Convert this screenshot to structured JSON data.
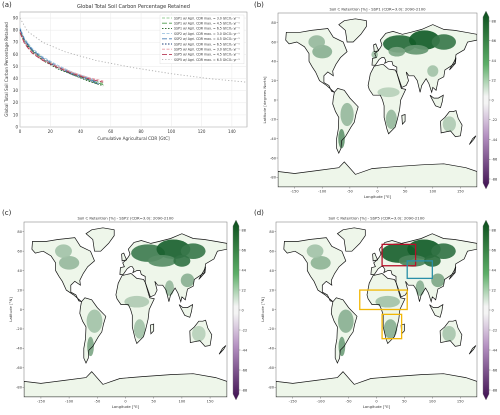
{
  "panels": {
    "a": {
      "letter": "(a)"
    },
    "b": {
      "letter": "(b)"
    },
    "c": {
      "letter": "(c)"
    },
    "d": {
      "letter": "(d)"
    }
  },
  "chart_data": [
    {
      "type": "line",
      "panel": "a",
      "title": "Global Total Soil Carbon Percentage Retained",
      "xlabel": "Cumulative Agricultural CDR [GtC]",
      "ylabel": "Global Total Soil Carbon Percentage Retained",
      "xlim": [
        0,
        150
      ],
      "ylim": [
        0,
        95
      ],
      "x_ticks": [
        "0",
        "20",
        "40",
        "60",
        "80",
        "100",
        "120",
        "140"
      ],
      "y_ticks": [
        "0",
        "10",
        "20",
        "30",
        "40",
        "50",
        "60",
        "70",
        "80",
        "90"
      ],
      "legend_position": "top-right",
      "grid": true,
      "series": [
        {
          "name": "SSP1 w/ Agri. CDR max. = 3.0 GtCO₂ yr⁻¹",
          "color": "#9acd9a",
          "dash": "3,1.5",
          "x": [
            0,
            3,
            8,
            15,
            25,
            35,
            45,
            55
          ],
          "y": [
            80,
            72,
            64,
            57,
            50,
            45,
            40,
            36
          ]
        },
        {
          "name": "SSP1 w/ Agri. CDR max. = 4.5 GtCO₂ yr⁻¹",
          "color": "#4c9a4c",
          "dash": "5,2",
          "x": [
            0,
            3,
            8,
            15,
            25,
            35,
            45,
            55
          ],
          "y": [
            79,
            71,
            63,
            56,
            49,
            44,
            39,
            35
          ]
        },
        {
          "name": "SSP1 w/ Agri. CDR max. = 6.5 GtCO₂ yr⁻¹",
          "color": "#1f5f1f",
          "dash": "1.5,1.5",
          "x": [
            0,
            3,
            8,
            15,
            25,
            35,
            45,
            55
          ],
          "y": [
            78,
            70,
            62,
            55,
            48,
            43,
            38,
            34
          ]
        },
        {
          "name": "SSP2 w/ Agri. CDR max. = 3.0 GtCO₂ yr⁻¹",
          "color": "#9ec3e0",
          "dash": "3,1.5",
          "x": [
            0,
            3,
            8,
            15,
            25,
            35,
            45,
            52
          ],
          "y": [
            82,
            73,
            65,
            58,
            51,
            45,
            41,
            37
          ]
        },
        {
          "name": "SSP2 w/ Agri. CDR max. = 4.5 GtCO₂ yr⁻¹",
          "color": "#4a7fb5",
          "dash": "5,2",
          "x": [
            0,
            3,
            8,
            15,
            25,
            35,
            45,
            52
          ],
          "y": [
            81,
            72,
            64,
            57,
            50,
            44,
            40,
            36
          ]
        },
        {
          "name": "SSP2 w/ Agri. CDR max. = 6.5 GtCO₂ yr⁻¹",
          "color": "#1b3f78",
          "dash": "1.5,1.5",
          "x": [
            0,
            3,
            8,
            15,
            25,
            35,
            45,
            52
          ],
          "y": [
            80,
            71,
            63,
            56,
            49,
            43,
            39,
            35
          ]
        },
        {
          "name": "SSP5 w/ Agri. CDR max. = 3.0 GtCO₂ yr⁻¹",
          "color": "#e39aa5",
          "dash": "3,1.5",
          "x": [
            0,
            3,
            8,
            15,
            25,
            35,
            45,
            55
          ],
          "y": [
            79,
            70,
            62,
            56,
            50,
            45,
            41,
            38
          ]
        },
        {
          "name": "SSP5 w/ Agri. CDR max. = 4.5 GtCO₂ yr⁻¹",
          "color": "#b83a55",
          "dash": "5,2",
          "x": [
            0,
            3,
            8,
            15,
            25,
            35,
            45,
            55
          ],
          "y": [
            78,
            69,
            61,
            55,
            49,
            44,
            40,
            37
          ]
        },
        {
          "name": "SSP5 w/ Agri. CDR max. = 6.5 GtCO₂ yr⁻¹",
          "color": "#b0b0b0",
          "dash": "1.2,2",
          "x": [
            0,
            5,
            15,
            30,
            50,
            75,
            100,
            125,
            150
          ],
          "y": [
            90,
            79,
            70,
            62,
            55,
            49,
            44,
            40,
            37
          ]
        }
      ]
    },
    {
      "type": "heatmap",
      "panel": "b",
      "title": "Soil C Retention [%] - SSP1 (CDR=3.0): 2090-2100",
      "xlabel": "Longitude [°E]",
      "ylabel": "Latitude [degrees North]",
      "xlim": [
        -180,
        180
      ],
      "ylim": [
        -90,
        90
      ],
      "x_ticks": [
        "-150",
        "-100",
        "-50",
        "0",
        "50",
        "100",
        "150"
      ],
      "y_ticks": [
        "80",
        "60",
        "40",
        "20",
        "0",
        "-20",
        "-40",
        "-60",
        "-80"
      ],
      "colorbar_ticks": [
        "88",
        "66",
        "44",
        "22",
        "0",
        "-22",
        "-44",
        "-66",
        "-88"
      ]
    },
    {
      "type": "heatmap",
      "panel": "c",
      "title": "Soil C Retention [%] - SSP2 (CDR=3.0): 2090-2100",
      "xlabel": "Longitude [°E]",
      "ylabel": "Latitude [°N]",
      "xlim": [
        -180,
        180
      ],
      "ylim": [
        -90,
        90
      ],
      "x_ticks": [
        "-150",
        "-100",
        "-50",
        "0",
        "50",
        "100",
        "150"
      ],
      "y_ticks": [
        "80",
        "60",
        "40",
        "20",
        "0",
        "-20",
        "-40",
        "-60",
        "-80"
      ],
      "colorbar_ticks": [
        "88",
        "66",
        "44",
        "22",
        "0",
        "-22",
        "-44",
        "-66",
        "-88"
      ]
    },
    {
      "type": "heatmap",
      "panel": "d",
      "title": "Soil C Retention [%] - SSP5 (CDR=3.0): 2090-2100",
      "xlabel": "Longitude [°E]",
      "ylabel": "Latitude [°N]",
      "xlim": [
        -180,
        180
      ],
      "ylim": [
        -90,
        90
      ],
      "x_ticks": [
        "-150",
        "-100",
        "-50",
        "0",
        "50",
        "100",
        "150"
      ],
      "y_ticks": [
        "80",
        "60",
        "40",
        "20",
        "0",
        "-20",
        "-40",
        "-60",
        "-80"
      ],
      "colorbar_ticks": [
        "88",
        "66",
        "44",
        "22",
        "0",
        "-22",
        "-44",
        "-66",
        "-88"
      ],
      "highlight_boxes": [
        {
          "color": "#b8102a",
          "lon": [
            10,
            70
          ],
          "lat": [
            45,
            67
          ]
        },
        {
          "color": "#2a8fa8",
          "lon": [
            55,
            100
          ],
          "lat": [
            32,
            50
          ]
        },
        {
          "color": "#f2b705",
          "lon": [
            -30,
            55
          ],
          "lat": [
            0,
            20
          ]
        },
        {
          "color": "#f2b705",
          "lon": [
            10,
            45
          ],
          "lat": [
            -30,
            -5
          ]
        }
      ]
    }
  ]
}
